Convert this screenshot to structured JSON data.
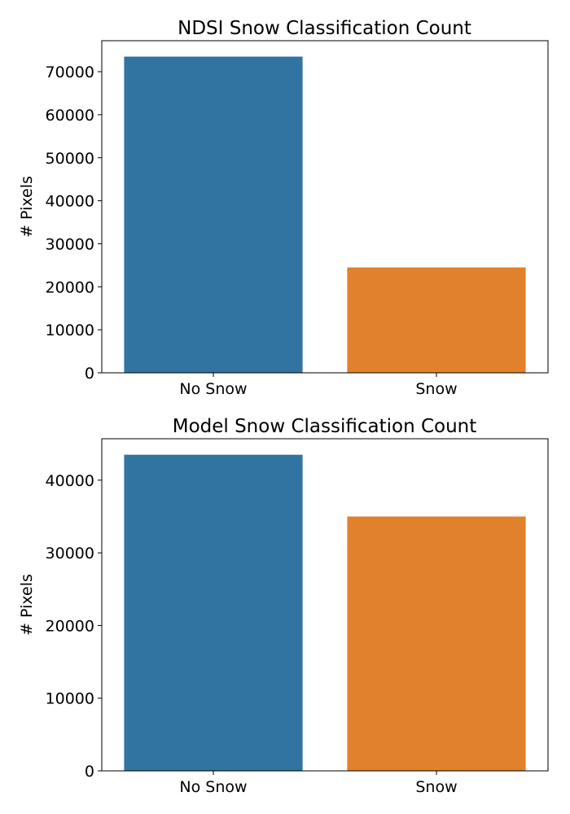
{
  "chart_data": [
    {
      "type": "bar",
      "title": "NDSI Snow Classification Count",
      "xlabel": "",
      "ylabel": "# Pixels",
      "categories": [
        "No Snow",
        "Snow"
      ],
      "values": [
        73500,
        24500
      ],
      "colors": [
        "#3274a1",
        "#e1812c"
      ],
      "ylim": [
        0,
        77200
      ],
      "yticks": [
        0,
        10000,
        20000,
        30000,
        40000,
        50000,
        60000,
        70000
      ],
      "grid": false,
      "legend": "none"
    },
    {
      "type": "bar",
      "title": "Model Snow Classification Count",
      "xlabel": "",
      "ylabel": "# Pixels",
      "categories": [
        "No Snow",
        "Snow"
      ],
      "values": [
        43500,
        35000
      ],
      "colors": [
        "#3274a1",
        "#e1812c"
      ],
      "ylim": [
        0,
        45700
      ],
      "yticks": [
        0,
        10000,
        20000,
        30000,
        40000
      ],
      "grid": false,
      "legend": "none"
    }
  ]
}
